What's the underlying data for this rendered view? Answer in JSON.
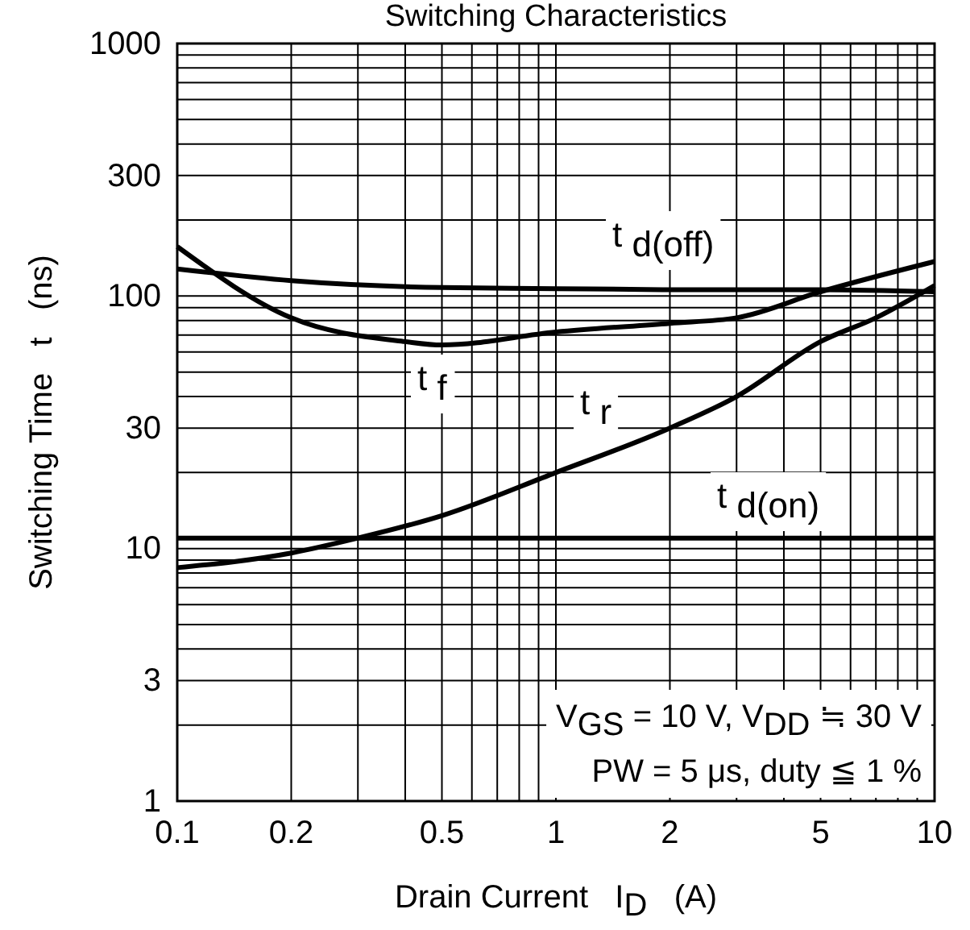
{
  "chart_data": {
    "type": "line",
    "title": "Switching Characteristics",
    "xlabel": "Drain Current   I$_{D}$   (A)",
    "ylabel": "Switching Time   t   (ns)",
    "log": "xy",
    "grid": true,
    "line_style": "solid",
    "marker": "none",
    "xlim": [
      0.1,
      10
    ],
    "ylim": [
      1,
      1000
    ],
    "xticks": [
      0.1,
      0.2,
      {
        "value": 0.3,
        "label": null
      },
      {
        "value": 0.4,
        "label": null
      },
      0.5,
      {
        "value": 0.6,
        "label": null
      },
      {
        "value": 0.7,
        "label": null
      },
      {
        "value": 0.8,
        "label": null
      },
      {
        "value": 0.9,
        "label": null
      },
      1,
      2,
      {
        "value": 3,
        "label": null
      },
      {
        "value": 4,
        "label": null
      },
      5,
      {
        "value": 6,
        "label": null
      },
      {
        "value": 7,
        "label": null
      },
      {
        "value": 8,
        "label": null
      },
      {
        "value": 9,
        "label": null
      },
      10
    ],
    "yticks": [
      1,
      {
        "value": 2,
        "label": null
      },
      3,
      {
        "value": 4,
        "label": null
      },
      {
        "value": 5,
        "label": null
      },
      {
        "value": 6,
        "label": null
      },
      {
        "value": 7,
        "label": null
      },
      {
        "value": 8,
        "label": null
      },
      {
        "value": 9,
        "label": null
      },
      10,
      {
        "value": 20,
        "label": null
      },
      30,
      {
        "value": 40,
        "label": null
      },
      {
        "value": 50,
        "label": null
      },
      {
        "value": 60,
        "label": null
      },
      {
        "value": 70,
        "label": null
      },
      {
        "value": 80,
        "label": null
      },
      {
        "value": 90,
        "label": null
      },
      100,
      {
        "value": 200,
        "label": null
      },
      300,
      {
        "value": 400,
        "label": null
      },
      {
        "value": 500,
        "label": null
      },
      {
        "value": 600,
        "label": null
      },
      {
        "value": 700,
        "label": null
      },
      {
        "value": 800,
        "label": null
      },
      {
        "value": 900,
        "label": null
      },
      1000
    ],
    "series": [
      {
        "name": "t $_{d(off)}$",
        "color": "#000000",
        "x": [
          0.1,
          0.2,
          0.5,
          1,
          2,
          5,
          10
        ],
        "values": [
          128,
          115,
          108,
          107,
          106,
          106,
          104
        ]
      },
      {
        "name": "t $_{f}$",
        "color": "#000000",
        "x": [
          0.1,
          0.2,
          0.4,
          0.5,
          1,
          2,
          3,
          5,
          10
        ],
        "values": [
          157,
          82,
          66,
          64,
          72,
          78,
          82,
          104,
          137
        ]
      },
      {
        "name": "t $_{r}$",
        "color": "#000000",
        "x": [
          0.1,
          0.2,
          0.3,
          0.5,
          1,
          2,
          3,
          5,
          7,
          10
        ],
        "values": [
          8.4,
          9.6,
          11,
          13.5,
          20,
          30,
          40,
          66,
          82,
          110
        ]
      },
      {
        "name": "t $_{d(on)}$",
        "color": "#000000",
        "x": [
          0.1,
          10
        ],
        "values": [
          11,
          11
        ]
      }
    ],
    "annotations": [
      "V$_{GS}$ = 10 V, V$_{DD}$ ≒ 30 V",
      "PW = 5 μs, duty ≦ 1 %"
    ]
  }
}
